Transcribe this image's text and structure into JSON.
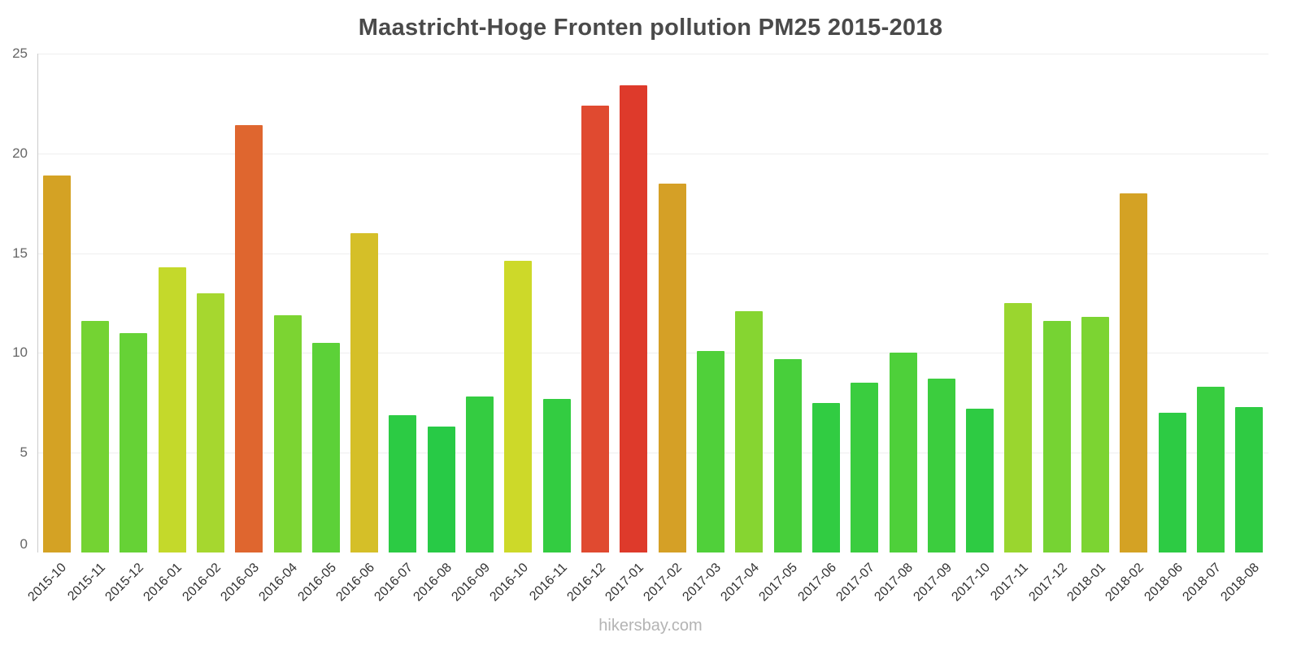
{
  "title": "Maastricht-Hoge Fronten pollution PM25 2015-2018",
  "footer": "hikersbay.com",
  "chart_data": {
    "type": "bar",
    "title": "Maastricht-Hoge Fronten pollution PM25 2015-2018",
    "xlabel": "",
    "ylabel": "",
    "ylim": [
      0,
      25
    ],
    "yticks": [
      0,
      5,
      10,
      15,
      20,
      25
    ],
    "grid": true,
    "legend_position": "none",
    "categories": [
      "2015-10",
      "2015-11",
      "2015-12",
      "2016-01",
      "2016-02",
      "2016-03",
      "2016-04",
      "2016-05",
      "2016-06",
      "2016-07",
      "2016-08",
      "2016-09",
      "2016-10",
      "2016-11",
      "2016-12",
      "2017-01",
      "2017-02",
      "2017-03",
      "2017-04",
      "2017-05",
      "2017-06",
      "2017-07",
      "2017-08",
      "2017-09",
      "2017-10",
      "2017-11",
      "2017-12",
      "2018-01",
      "2018-02",
      "2018-06",
      "2018-07",
      "2018-08"
    ],
    "values": [
      18.9,
      11.6,
      11.0,
      14.3,
      13.0,
      21.4,
      11.9,
      10.5,
      16.0,
      6.9,
      6.3,
      7.8,
      14.6,
      7.7,
      22.4,
      23.4,
      18.5,
      10.1,
      12.1,
      9.7,
      7.5,
      8.5,
      10.0,
      8.7,
      7.2,
      12.5,
      11.6,
      11.8,
      18.0,
      7.0,
      8.3,
      7.3
    ],
    "colors": [
      "#d4a224",
      "#74d333",
      "#66d236",
      "#c4d92b",
      "#a6d72f",
      "#df662f",
      "#7cd432",
      "#5cd138",
      "#d5bf28",
      "#2ccb44",
      "#28ca46",
      "#34cc41",
      "#cdd929",
      "#33cc41",
      "#e04a30",
      "#de3a2b",
      "#d5a026",
      "#50d03a",
      "#86d531",
      "#48cf3b",
      "#31cc42",
      "#3acd3f",
      "#4ed03a",
      "#3ccd3e",
      "#2ecb43",
      "#9ad62f",
      "#76d333",
      "#7cd432",
      "#d4a224",
      "#2dcb44",
      "#38cd40",
      "#2fcb43"
    ]
  }
}
